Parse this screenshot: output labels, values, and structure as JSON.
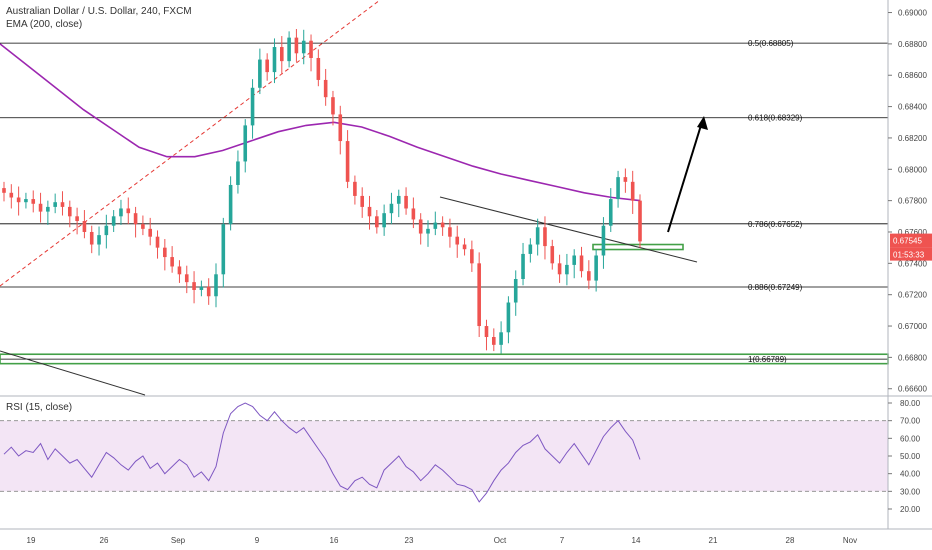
{
  "header": {
    "title": "Australian Dollar / U.S. Dollar, 240, FXCM",
    "ema_label": "EMA (200, close)",
    "rsi_label": "RSI (15, close)"
  },
  "colors": {
    "up": "#26a69a",
    "down": "#ef5350",
    "ema": "#9c27b0",
    "rsi": "#7e57c2",
    "rsi_band": "#f3e5f5",
    "support": "#43a047",
    "fib_line": "#000000",
    "price_tag": "#ef5350"
  },
  "price_tag": {
    "value": "0.67545",
    "countdown": "01:53:33"
  },
  "chart_data": {
    "type": "candlestick",
    "symbol": "AUDUSD",
    "timeframe": "240",
    "x_labels": [
      "19",
      "26",
      "Sep",
      "9",
      "16",
      "23",
      "Oct",
      "7",
      "14",
      "21",
      "28",
      "Nov"
    ],
    "y_axis": {
      "range": [
        0.6656,
        0.6908
      ],
      "ticks": [
        "0.69000",
        "0.68800",
        "0.68600",
        "0.68400",
        "0.68200",
        "0.68000",
        "0.67800",
        "0.67600",
        "0.67400",
        "0.67200",
        "0.67000",
        "0.66800",
        "0.66600"
      ]
    },
    "fib_levels": [
      {
        "label": "0.5(0.68805)",
        "value": 0.68805
      },
      {
        "label": "0.618(0.68329)",
        "value": 0.68329
      },
      {
        "label": "0.786(0.67652)",
        "value": 0.67652
      },
      {
        "label": "0.886(0.67249)",
        "value": 0.67249
      },
      {
        "label": "1(0.66789)",
        "value": 0.66789
      }
    ],
    "support_zone": [
      0.6676,
      0.6682
    ],
    "retest_box": [
      0.6749,
      0.6752
    ],
    "ema_200": [
      0.688,
      0.6866,
      0.6852,
      0.6838,
      0.6826,
      0.6814,
      0.6808,
      0.6808,
      0.6812,
      0.6818,
      0.6824,
      0.6828,
      0.683,
      0.6827,
      0.6821,
      0.6814,
      0.6808,
      0.6802,
      0.6797,
      0.6793,
      0.6789,
      0.6785,
      0.6782,
      0.678
    ],
    "candle_closes": [
      0.6785,
      0.6782,
      0.6779,
      0.6781,
      0.6778,
      0.6773,
      0.6776,
      0.6779,
      0.6776,
      0.677,
      0.6767,
      0.676,
      0.6752,
      0.6758,
      0.6764,
      0.677,
      0.6775,
      0.6772,
      0.6765,
      0.6762,
      0.6757,
      0.675,
      0.6744,
      0.6738,
      0.6733,
      0.6728,
      0.6723,
      0.6725,
      0.6719,
      0.6733,
      0.6765,
      0.679,
      0.6805,
      0.6828,
      0.6852,
      0.687,
      0.6862,
      0.6878,
      0.6869,
      0.6884,
      0.6874,
      0.6882,
      0.6871,
      0.6857,
      0.6846,
      0.6835,
      0.6818,
      0.6792,
      0.6783,
      0.6776,
      0.677,
      0.6763,
      0.6772,
      0.6778,
      0.6783,
      0.6775,
      0.6768,
      0.6759,
      0.6762,
      0.6766,
      0.6763,
      0.6757,
      0.6752,
      0.6749,
      0.674,
      0.67,
      0.6693,
      0.6688,
      0.6696,
      0.6715,
      0.673,
      0.6746,
      0.6752,
      0.6763,
      0.6751,
      0.674,
      0.6733,
      0.6739,
      0.6745,
      0.6735,
      0.6729,
      0.6745,
      0.6764,
      0.6781,
      0.6795,
      0.6792,
      0.678,
      0.6754
    ],
    "rsi": {
      "levels": [
        70,
        30
      ],
      "range": [
        20,
        80
      ],
      "ticks": [
        "80.00",
        "70.00",
        "60.00",
        "50.00",
        "40.00",
        "30.00",
        "20.00"
      ],
      "values": [
        51,
        55,
        50,
        53,
        52,
        57,
        48,
        54,
        50,
        46,
        48,
        43,
        38,
        45,
        52,
        49,
        45,
        42,
        47,
        50,
        43,
        46,
        40,
        44,
        48,
        45,
        38,
        41,
        36,
        44,
        63,
        74,
        78,
        80,
        78,
        73,
        70,
        75,
        70,
        66,
        63,
        66,
        60,
        54,
        48,
        40,
        33,
        31,
        36,
        38,
        34,
        32,
        42,
        46,
        50,
        44,
        41,
        36,
        40,
        45,
        42,
        38,
        34,
        33,
        31,
        24,
        29,
        36,
        42,
        46,
        52,
        56,
        58,
        62,
        54,
        50,
        46,
        52,
        57,
        51,
        45,
        53,
        61,
        66,
        70,
        64,
        59,
        48
      ]
    }
  }
}
